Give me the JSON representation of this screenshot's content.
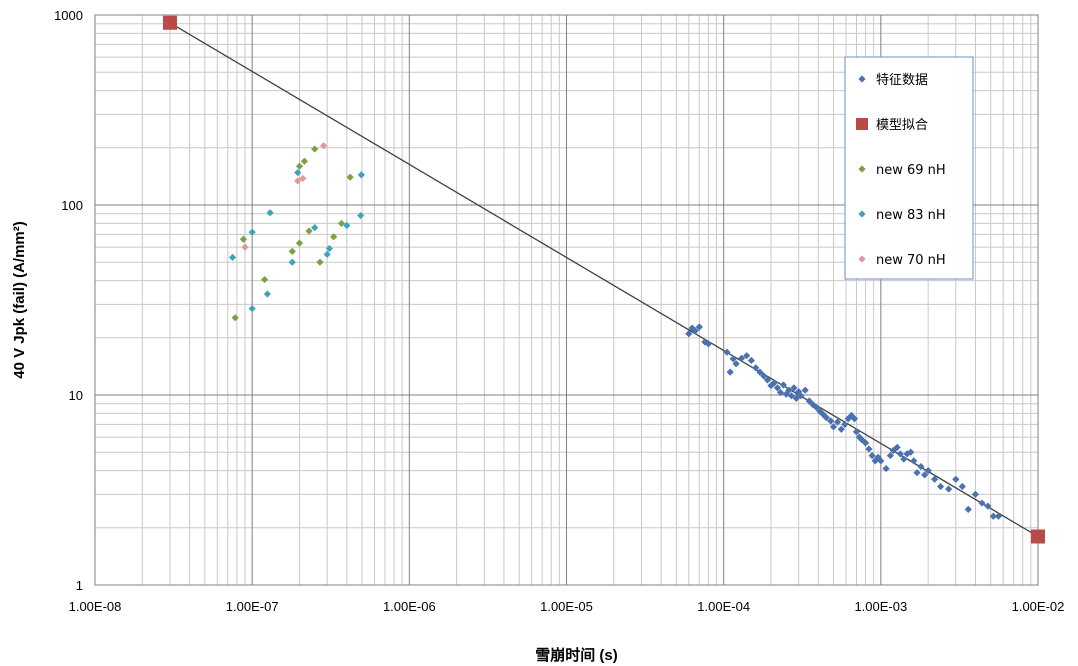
{
  "chart_data": {
    "type": "scatter",
    "title": "",
    "xlabel": "雪崩时间 (s)",
    "ylabel": "40 V Jpk (fail)  (A/mm²)",
    "xscale": "log",
    "yscale": "log",
    "xlim": [
      1e-08,
      0.01
    ],
    "ylim": [
      1,
      1000
    ],
    "xticks": [
      "1.00E-08",
      "1.00E-07",
      "1.00E-06",
      "1.00E-05",
      "1.00E-04",
      "1.00E-03",
      "1.00E-02"
    ],
    "yticks": [
      "1",
      "10",
      "100",
      "1000"
    ],
    "grid": "major and minor",
    "legend": "right inside",
    "series": [
      {
        "name": "特征数据",
        "marker": "diamond",
        "color": "#4a72b0",
        "points": [
          [
            6e-05,
            21.0
          ],
          [
            6.3e-05,
            22.5
          ],
          [
            6.6e-05,
            21.8
          ],
          [
            7e-05,
            22.8
          ],
          [
            7.6e-05,
            19.0
          ],
          [
            8e-05,
            18.6
          ],
          [
            0.000105,
            16.8
          ],
          [
            0.00011,
            13.2
          ],
          [
            0.000115,
            15.5
          ],
          [
            0.00012,
            14.6
          ],
          [
            0.00013,
            15.6
          ],
          [
            0.00014,
            16.1
          ],
          [
            0.00015,
            15.2
          ],
          [
            0.00016,
            13.9
          ],
          [
            0.00017,
            13.2
          ],
          [
            0.00018,
            12.6
          ],
          [
            0.00019,
            12.0
          ],
          [
            0.0002,
            11.2
          ],
          [
            0.00021,
            11.6
          ],
          [
            0.00022,
            10.9
          ],
          [
            0.00023,
            10.3
          ],
          [
            0.00024,
            11.3
          ],
          [
            0.00025,
            10.1
          ],
          [
            0.00026,
            10.6
          ],
          [
            0.00027,
            9.9
          ],
          [
            0.00028,
            10.9
          ],
          [
            0.00029,
            9.6
          ],
          [
            0.0003,
            10.4
          ],
          [
            0.00031,
            9.9
          ],
          [
            0.00033,
            10.6
          ],
          [
            0.00035,
            9.3
          ],
          [
            0.00037,
            8.9
          ],
          [
            0.00039,
            8.6
          ],
          [
            0.00041,
            8.2
          ],
          [
            0.00043,
            7.9
          ],
          [
            0.00045,
            7.6
          ],
          [
            0.00048,
            7.3
          ],
          [
            0.0005,
            6.8
          ],
          [
            0.00053,
            7.2
          ],
          [
            0.00056,
            6.6
          ],
          [
            0.00059,
            7.0
          ],
          [
            0.00062,
            7.5
          ],
          [
            0.00065,
            7.8
          ],
          [
            0.00068,
            7.5
          ],
          [
            0.0007,
            6.4
          ],
          [
            0.00073,
            6.0
          ],
          [
            0.00076,
            5.8
          ],
          [
            0.0008,
            5.6
          ],
          [
            0.00084,
            5.2
          ],
          [
            0.00088,
            4.8
          ],
          [
            0.00092,
            4.5
          ],
          [
            0.00096,
            4.7
          ],
          [
            0.001,
            4.5
          ],
          [
            0.00108,
            4.1
          ],
          [
            0.00115,
            4.8
          ],
          [
            0.0012,
            5.1
          ],
          [
            0.00127,
            5.3
          ],
          [
            0.00133,
            4.9
          ],
          [
            0.0014,
            4.6
          ],
          [
            0.00147,
            4.9
          ],
          [
            0.00155,
            5.0
          ],
          [
            0.00162,
            4.5
          ],
          [
            0.0017,
            3.9
          ],
          [
            0.0018,
            4.2
          ],
          [
            0.0019,
            3.8
          ],
          [
            0.002,
            4.0
          ],
          [
            0.0022,
            3.6
          ],
          [
            0.0024,
            3.3
          ],
          [
            0.0027,
            3.2
          ],
          [
            0.003,
            3.6
          ],
          [
            0.0033,
            3.3
          ],
          [
            0.0036,
            2.5
          ],
          [
            0.004,
            3.0
          ],
          [
            0.0044,
            2.7
          ],
          [
            0.0048,
            2.6
          ],
          [
            0.0052,
            2.3
          ],
          [
            0.0056,
            2.3
          ]
        ]
      },
      {
        "name": "模型拟合",
        "marker": "square",
        "color": "#b94a48",
        "points": [
          [
            3e-08,
            910
          ],
          [
            0.01,
            1.8
          ]
        ]
      },
      {
        "name": "new 69 nH",
        "marker": "diamond",
        "color": "#7aa244",
        "points": [
          [
            7.8e-08,
            25.5
          ],
          [
            8.8e-08,
            66
          ],
          [
            1.2e-07,
            40.5
          ],
          [
            1.8e-07,
            57
          ],
          [
            2e-07,
            63
          ],
          [
            2e-07,
            160
          ],
          [
            2.15e-07,
            170
          ],
          [
            2.3e-07,
            73
          ],
          [
            2.5e-07,
            197
          ],
          [
            2.7e-07,
            50
          ],
          [
            3.3e-07,
            68
          ],
          [
            3.7e-07,
            80
          ],
          [
            4.2e-07,
            140
          ]
        ]
      },
      {
        "name": "new 83 nH",
        "marker": "diamond",
        "color": "#3fa3be",
        "points": [
          [
            7.5e-08,
            53
          ],
          [
            1e-07,
            72
          ],
          [
            1e-07,
            28.5
          ],
          [
            1.25e-07,
            34
          ],
          [
            1.3e-07,
            91
          ],
          [
            1.8e-07,
            50
          ],
          [
            1.95e-07,
            148
          ],
          [
            2.5e-07,
            76
          ],
          [
            3e-07,
            55
          ],
          [
            3.1e-07,
            59
          ],
          [
            4e-07,
            78
          ],
          [
            4.9e-07,
            88
          ],
          [
            4.95e-07,
            144
          ]
        ]
      },
      {
        "name": "new 70 nH",
        "marker": "diamond",
        "color": "#e0989a",
        "points": [
          [
            9e-08,
            60
          ],
          [
            1.95e-07,
            134
          ],
          [
            2.1e-07,
            138
          ],
          [
            2.85e-07,
            205
          ]
        ]
      }
    ],
    "fit_line": {
      "from": [
        3e-08,
        910
      ],
      "to": [
        0.01,
        1.8
      ],
      "color": "#404040"
    }
  }
}
